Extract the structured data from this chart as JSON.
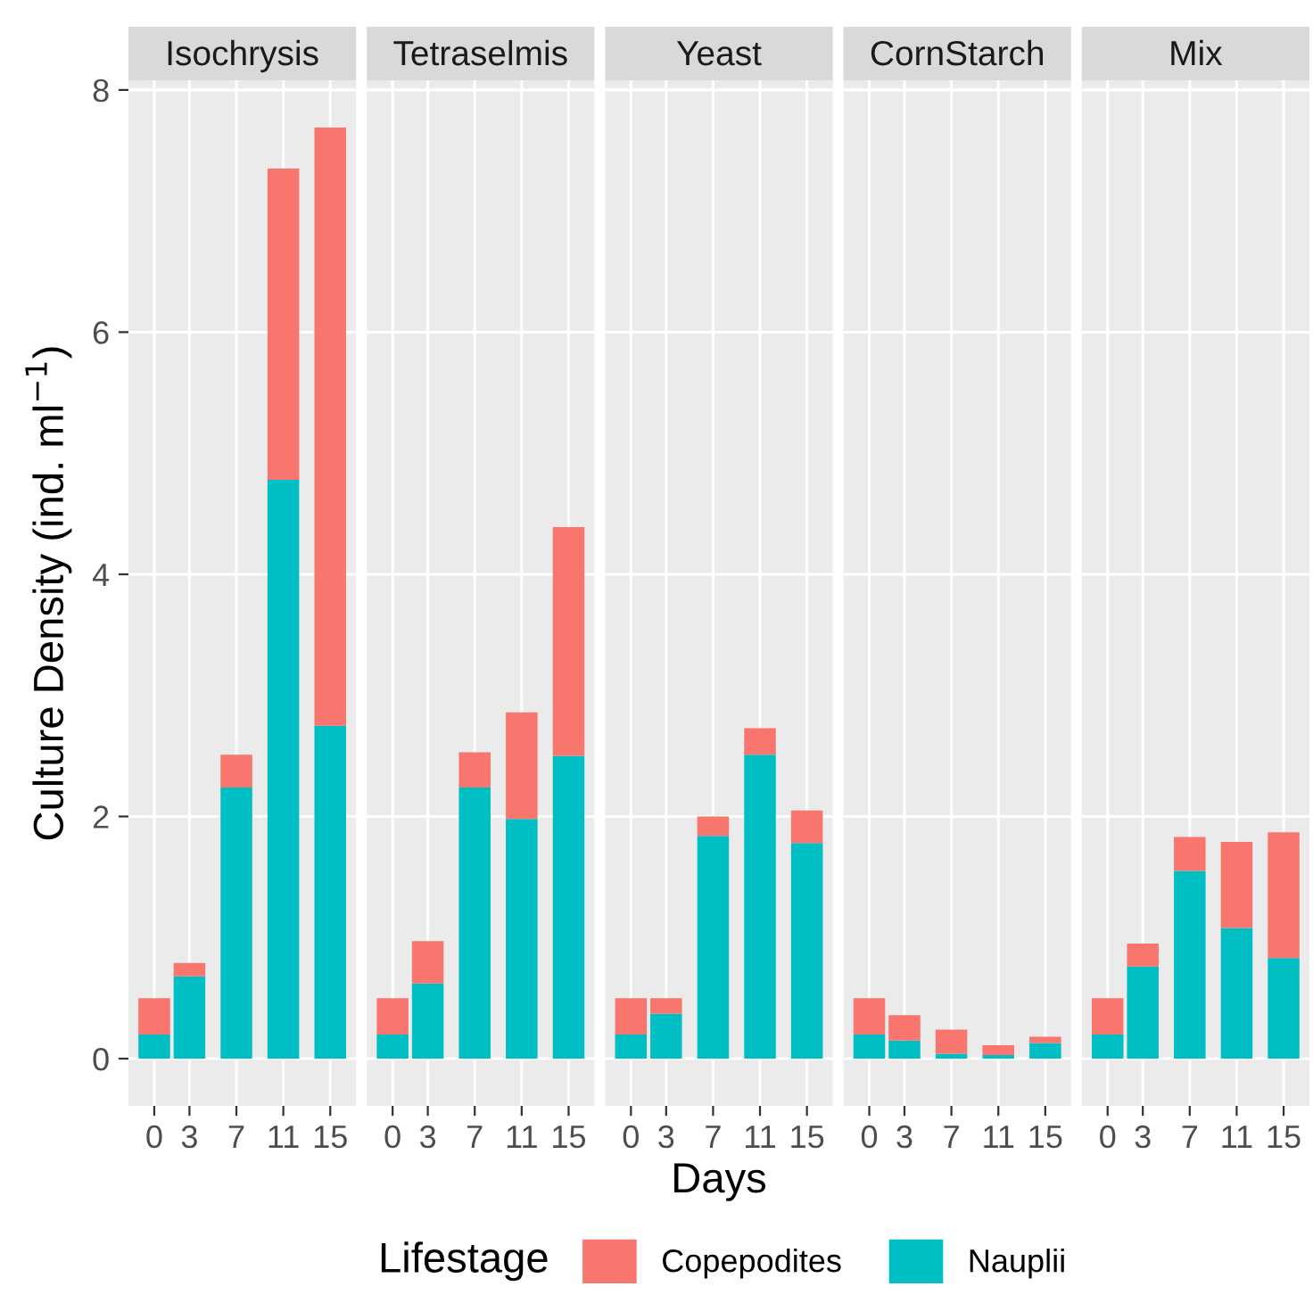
{
  "chart_data": [
    {
      "type": "bar",
      "title": "Isochrysis",
      "ylabel": "Culture Density (ind. ml$^{−1}$)",
      "legend_title": "Lifestage",
      "legend": "bottom",
      "stacked": true,
      "x": [
        0,
        3,
        7,
        11,
        15
      ],
      "xlim": [
        -2.2,
        17.2
      ],
      "xticks": [
        0,
        3,
        7,
        11,
        15
      ],
      "ylim": [
        -0.39,
        8.08
      ],
      "yticks": [
        0,
        2,
        4,
        6,
        8
      ],
      "grid": true,
      "series": [
        {
          "name": "Nauplii",
          "color": "#00bfc4",
          "values": [
            0.2,
            0.68,
            2.24,
            4.78,
            2.75
          ]
        },
        {
          "name": "Copepodites",
          "color": "#f8766d",
          "values": [
            0.3,
            0.11,
            0.27,
            2.57,
            4.94
          ]
        }
      ]
    },
    {
      "type": "bar",
      "title": "Tetraselmis",
      "stacked": true,
      "x": [
        0,
        3,
        7,
        11,
        15
      ],
      "xlim": [
        -2.2,
        17.2
      ],
      "xticks": [
        0,
        3,
        7,
        11,
        15
      ],
      "ylim": [
        -0.39,
        8.08
      ],
      "yticks": [
        0,
        2,
        4,
        6,
        8
      ],
      "grid": true,
      "tick_labels": "x",
      "series": [
        {
          "color": "#00bfc4",
          "values": [
            0.2,
            0.62,
            2.24,
            1.98,
            2.5
          ]
        },
        {
          "color": "#f8766d",
          "values": [
            0.3,
            0.35,
            0.29,
            0.88,
            1.89
          ]
        }
      ]
    },
    {
      "type": "bar",
      "title": "Yeast",
      "xlabel": "Days",
      "stacked": true,
      "x": [
        0,
        3,
        7,
        11,
        15
      ],
      "xlim": [
        -2.2,
        17.2
      ],
      "xticks": [
        0,
        3,
        7,
        11,
        15
      ],
      "ylim": [
        -0.39,
        8.08
      ],
      "yticks": [
        0,
        2,
        4,
        6,
        8
      ],
      "grid": true,
      "tick_labels": "x",
      "series": [
        {
          "color": "#00bfc4",
          "values": [
            0.2,
            0.37,
            1.84,
            2.51,
            1.78
          ]
        },
        {
          "color": "#f8766d",
          "values": [
            0.3,
            0.13,
            0.16,
            0.22,
            0.27
          ]
        }
      ]
    },
    {
      "type": "bar",
      "title": "CornStarch",
      "stacked": true,
      "x": [
        0,
        3,
        7,
        11,
        15
      ],
      "xlim": [
        -2.2,
        17.2
      ],
      "xticks": [
        0,
        3,
        7,
        11,
        15
      ],
      "ylim": [
        -0.39,
        8.08
      ],
      "yticks": [
        0,
        2,
        4,
        6,
        8
      ],
      "grid": true,
      "tick_labels": "x",
      "series": [
        {
          "color": "#00bfc4",
          "values": [
            0.2,
            0.15,
            0.04,
            0.03,
            0.13
          ]
        },
        {
          "color": "#f8766d",
          "values": [
            0.3,
            0.21,
            0.2,
            0.08,
            0.05
          ]
        }
      ]
    },
    {
      "type": "bar",
      "title": "Mix",
      "stacked": true,
      "x": [
        0,
        3,
        7,
        11,
        15
      ],
      "xlim": [
        -2.2,
        17.2
      ],
      "xticks": [
        0,
        3,
        7,
        11,
        15
      ],
      "ylim": [
        -0.39,
        8.08
      ],
      "yticks": [
        0,
        2,
        4,
        6,
        8
      ],
      "grid": true,
      "tick_labels": "x",
      "series": [
        {
          "color": "#00bfc4",
          "values": [
            0.2,
            0.76,
            1.55,
            1.08,
            0.83
          ]
        },
        {
          "color": "#f8766d",
          "values": [
            0.3,
            0.19,
            0.28,
            0.71,
            1.04
          ]
        }
      ]
    }
  ]
}
